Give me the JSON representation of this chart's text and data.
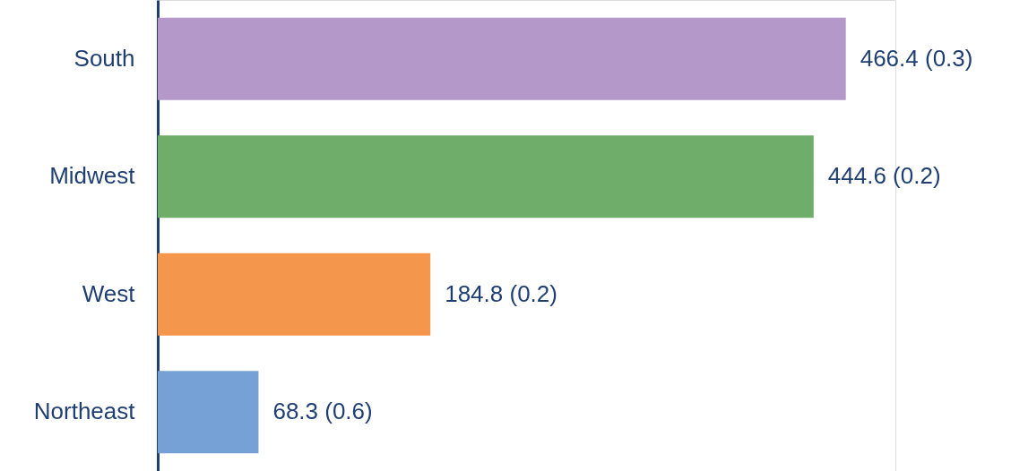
{
  "chart_data": {
    "type": "bar",
    "orientation": "horizontal",
    "categories": [
      "South",
      "Midwest",
      "West",
      "Northeast"
    ],
    "values": [
      466.4,
      444.6,
      184.8,
      68.3
    ],
    "colors": [
      "#b398c9",
      "#6fad6b",
      "#f4964c",
      "#75a1d6"
    ],
    "value_labels": [
      "466.4 (0.3)",
      "444.6 (0.2)",
      "184.8 (0.2)",
      "68.3 (0.6)"
    ]
  }
}
